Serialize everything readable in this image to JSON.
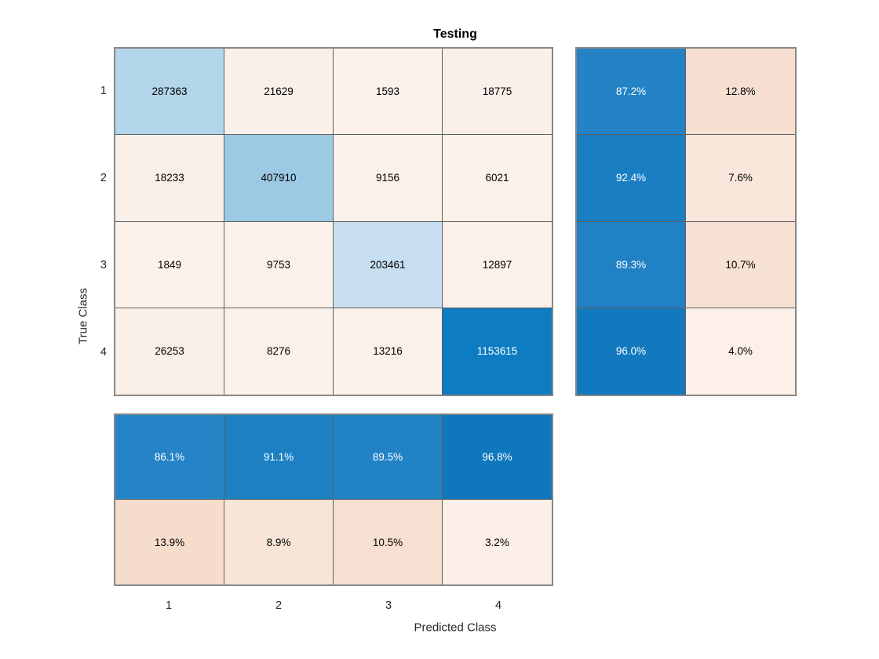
{
  "chart_data": {
    "type": "heatmap",
    "subtype": "confusion-matrix",
    "title": "Testing",
    "xlabel": "Predicted Class",
    "ylabel": "True Class",
    "classes": [
      "1",
      "2",
      "3",
      "4"
    ],
    "matrix": [
      [
        287363,
        21629,
        1593,
        18775
      ],
      [
        18233,
        407910,
        9156,
        6021
      ],
      [
        1849,
        9753,
        203461,
        12897
      ],
      [
        26253,
        8276,
        13216,
        1153615
      ]
    ],
    "row_summary": [
      [
        "87.2%",
        "12.8%"
      ],
      [
        "92.4%",
        "7.6%"
      ],
      [
        "89.3%",
        "10.7%"
      ],
      [
        "96.0%",
        "4.0%"
      ]
    ],
    "col_summary": [
      [
        "86.1%",
        "91.1%",
        "89.5%",
        "96.8%"
      ],
      [
        "13.9%",
        "8.9%",
        "10.5%",
        "3.2%"
      ]
    ],
    "legend_position": "none",
    "grid": true
  },
  "colors": {
    "background": "#ffffff",
    "diagonal_blue_dark": "#0d7cc1",
    "off_diagonal_tint": "#fbf0e9",
    "matrix": [
      [
        "#b3d6eb",
        "#fbf0e9",
        "#fcf2ec",
        "#fbf0e9"
      ],
      [
        "#fbf0e9",
        "#9cc9e4",
        "#fbf1eb",
        "#fbf2eb"
      ],
      [
        "#fcf2ec",
        "#fbf1ea",
        "#c7dff0",
        "#fbf0ea"
      ],
      [
        "#faefe7",
        "#fbf1eb",
        "#fbf0ea",
        "#0d7cc1"
      ]
    ],
    "row_summary": [
      [
        "#2383c5",
        "#f6dfd0"
      ],
      [
        "#1a7ec2",
        "#f9e7db"
      ],
      [
        "#2081c4",
        "#f7e1d2"
      ],
      [
        "#1379be",
        "#fcf0e9"
      ]
    ],
    "col_summary": [
      [
        "#2584c6",
        "#1d80c3",
        "#2182c4",
        "#0f77bd"
      ],
      [
        "#f6dccb",
        "#f9e5d8",
        "#f7e0d2",
        "#fcefe7"
      ]
    ]
  }
}
